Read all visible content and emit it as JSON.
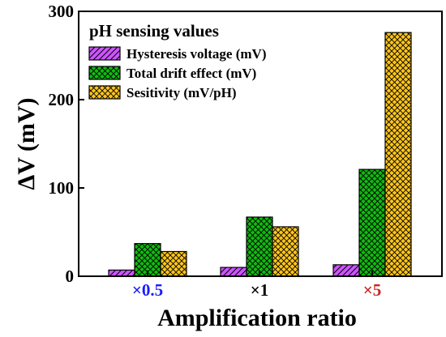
{
  "chart_data": {
    "type": "bar",
    "xlabel": "Amplification ratio",
    "ylabel": "ΔV (mV)",
    "ylim": [
      0,
      300
    ],
    "yticks": [
      0,
      100,
      200,
      300
    ],
    "categories": [
      "×0.5",
      "×1",
      "×5"
    ],
    "category_colors": [
      "#1a1aff",
      "#000000",
      "#cc2222"
    ],
    "legend": {
      "title": "pH sensing values",
      "placement": "top-left"
    },
    "grid": false,
    "series": [
      {
        "name": "Hysteresis voltage (mV)",
        "values": [
          7,
          10,
          13
        ],
        "color": "#cc55ff",
        "hatch": "forward-diagonal"
      },
      {
        "name": "Total drift effect (mV)",
        "values": [
          37,
          67,
          121
        ],
        "color": "#11bb11",
        "hatch": "crosshatch"
      },
      {
        "name": "Sesitivity (mV/pH)",
        "values": [
          28,
          56,
          276
        ],
        "color": "#ffc61a",
        "hatch": "forward-diagonal-and-crosshatch"
      }
    ]
  }
}
